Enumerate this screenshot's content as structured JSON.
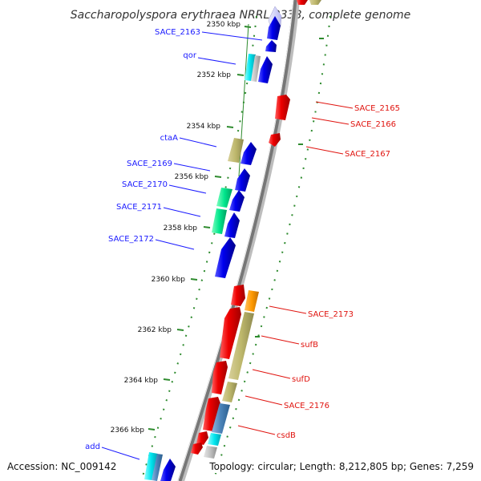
{
  "title": "Saccharopolyspora erythraea NRRL 2338, complete genome",
  "footer": {
    "accession": "Accession: NC_009142",
    "topology": "Topology: circular; Length: 8,212,805 bp; Genes: 7,259"
  },
  "colors": {
    "forward_label": "#1a1aff",
    "reverse_label": "#e0140f",
    "backbone": "#808080",
    "tick": "#2e8b2e"
  },
  "ticks": [
    {
      "label": "2350 kbp"
    },
    {
      "label": "2352 kbp"
    },
    {
      "label": "2354 kbp"
    },
    {
      "label": "2356 kbp"
    },
    {
      "label": "2358 kbp"
    },
    {
      "label": "2360 kbp"
    },
    {
      "label": "2362 kbp"
    },
    {
      "label": "2364 kbp"
    },
    {
      "label": "2366 kbp"
    }
  ],
  "forward_labels": [
    "SACE_2163",
    "qor",
    "ctaA",
    "SACE_2169",
    "SACE_2170",
    "SACE_2171",
    "SACE_2172",
    "add"
  ],
  "reverse_labels": [
    "SACE_2165",
    "SACE_2166",
    "SACE_2167",
    "SACE_2173",
    "sufB",
    "sufD",
    "SACE_2176",
    "csdB"
  ]
}
